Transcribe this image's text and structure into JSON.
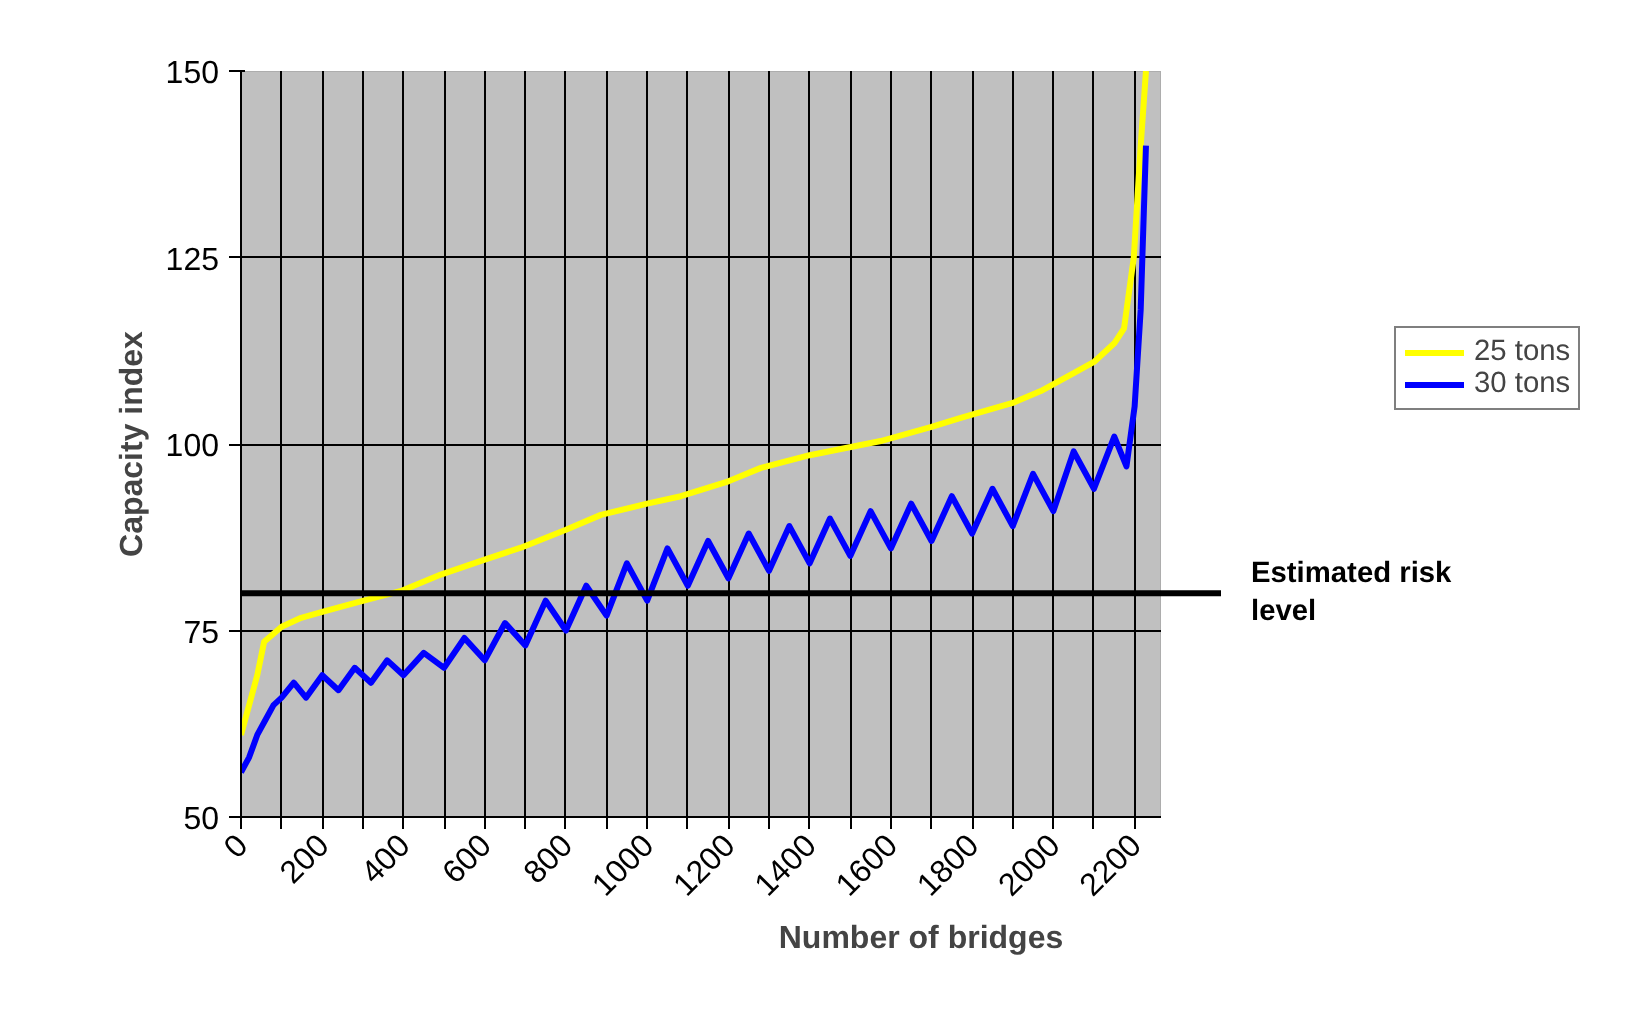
{
  "chart_data": {
    "type": "line",
    "xlabel": "Number of bridges",
    "ylabel": "Capacity index",
    "xlim": [
      0,
      2265
    ],
    "ylim": [
      50,
      150
    ],
    "xticks": [
      0,
      {
        "value": 100,
        "label": null
      },
      200,
      {
        "value": 300,
        "label": null
      },
      400,
      {
        "value": 500,
        "label": null
      },
      600,
      {
        "value": 700,
        "label": null
      },
      800,
      {
        "value": 900,
        "label": null
      },
      1000,
      {
        "value": 1100,
        "label": null
      },
      1200,
      {
        "value": 1300,
        "label": null
      },
      1400,
      {
        "value": 1500,
        "label": null
      },
      1600,
      {
        "value": 1700,
        "label": null
      },
      1800,
      {
        "value": 1900,
        "label": null
      },
      2000,
      {
        "value": 2100,
        "label": null
      },
      2200
    ],
    "yticks": [
      50,
      75,
      100,
      125,
      150
    ],
    "grid": true,
    "legend": "right",
    "marker": "none",
    "line_style": "solid",
    "series": [
      {
        "name": "25 tons",
        "color": "#ffff00",
        "x": [
          0,
          40,
          57,
          100,
          148,
          200,
          295,
          394,
          492,
          600,
          689,
          800,
          886,
          1000,
          1083,
          1200,
          1280,
          1400,
          1575,
          1700,
          1772,
          1900,
          1969,
          2050,
          2100,
          2150,
          2174,
          2198,
          2215,
          2228
        ],
        "values": [
          61,
          69,
          73.5,
          75.5,
          76.7,
          77.5,
          78.9,
          80.3,
          82.5,
          84.5,
          86.1,
          88.5,
          90.5,
          92,
          93,
          95,
          96.8,
          98.5,
          100.4,
          102.3,
          103.5,
          105.5,
          107.1,
          109.5,
          111,
          113.5,
          115.5,
          125,
          140,
          150
        ]
      },
      {
        "name": "30 tons",
        "color": "#0000ff",
        "x": [
          0,
          20,
          40,
          60,
          80,
          100,
          130,
          160,
          200,
          240,
          280,
          320,
          360,
          400,
          450,
          500,
          550,
          600,
          650,
          700,
          750,
          800,
          850,
          900,
          950,
          1000,
          1050,
          1100,
          1150,
          1200,
          1250,
          1300,
          1350,
          1400,
          1450,
          1500,
          1550,
          1600,
          1650,
          1700,
          1750,
          1800,
          1850,
          1900,
          1950,
          2000,
          2050,
          2100,
          2150,
          2180,
          2200,
          2215,
          2228
        ],
        "values": [
          56,
          58,
          61,
          63,
          65,
          66,
          68,
          66,
          69,
          67,
          70,
          68,
          71,
          69,
          72,
          70,
          74,
          71,
          76,
          73,
          79,
          75,
          81,
          77,
          84,
          79,
          86,
          81,
          87,
          82,
          88,
          83,
          89,
          84,
          90,
          85,
          91,
          86,
          92,
          87,
          93,
          88,
          94,
          89,
          96,
          91,
          99,
          94,
          101,
          97,
          105,
          118,
          140
        ]
      }
    ],
    "ref_lines": [
      {
        "axis": "y",
        "value": 80,
        "label": "Estimated risk\nlevel",
        "color": "#000000"
      }
    ]
  }
}
